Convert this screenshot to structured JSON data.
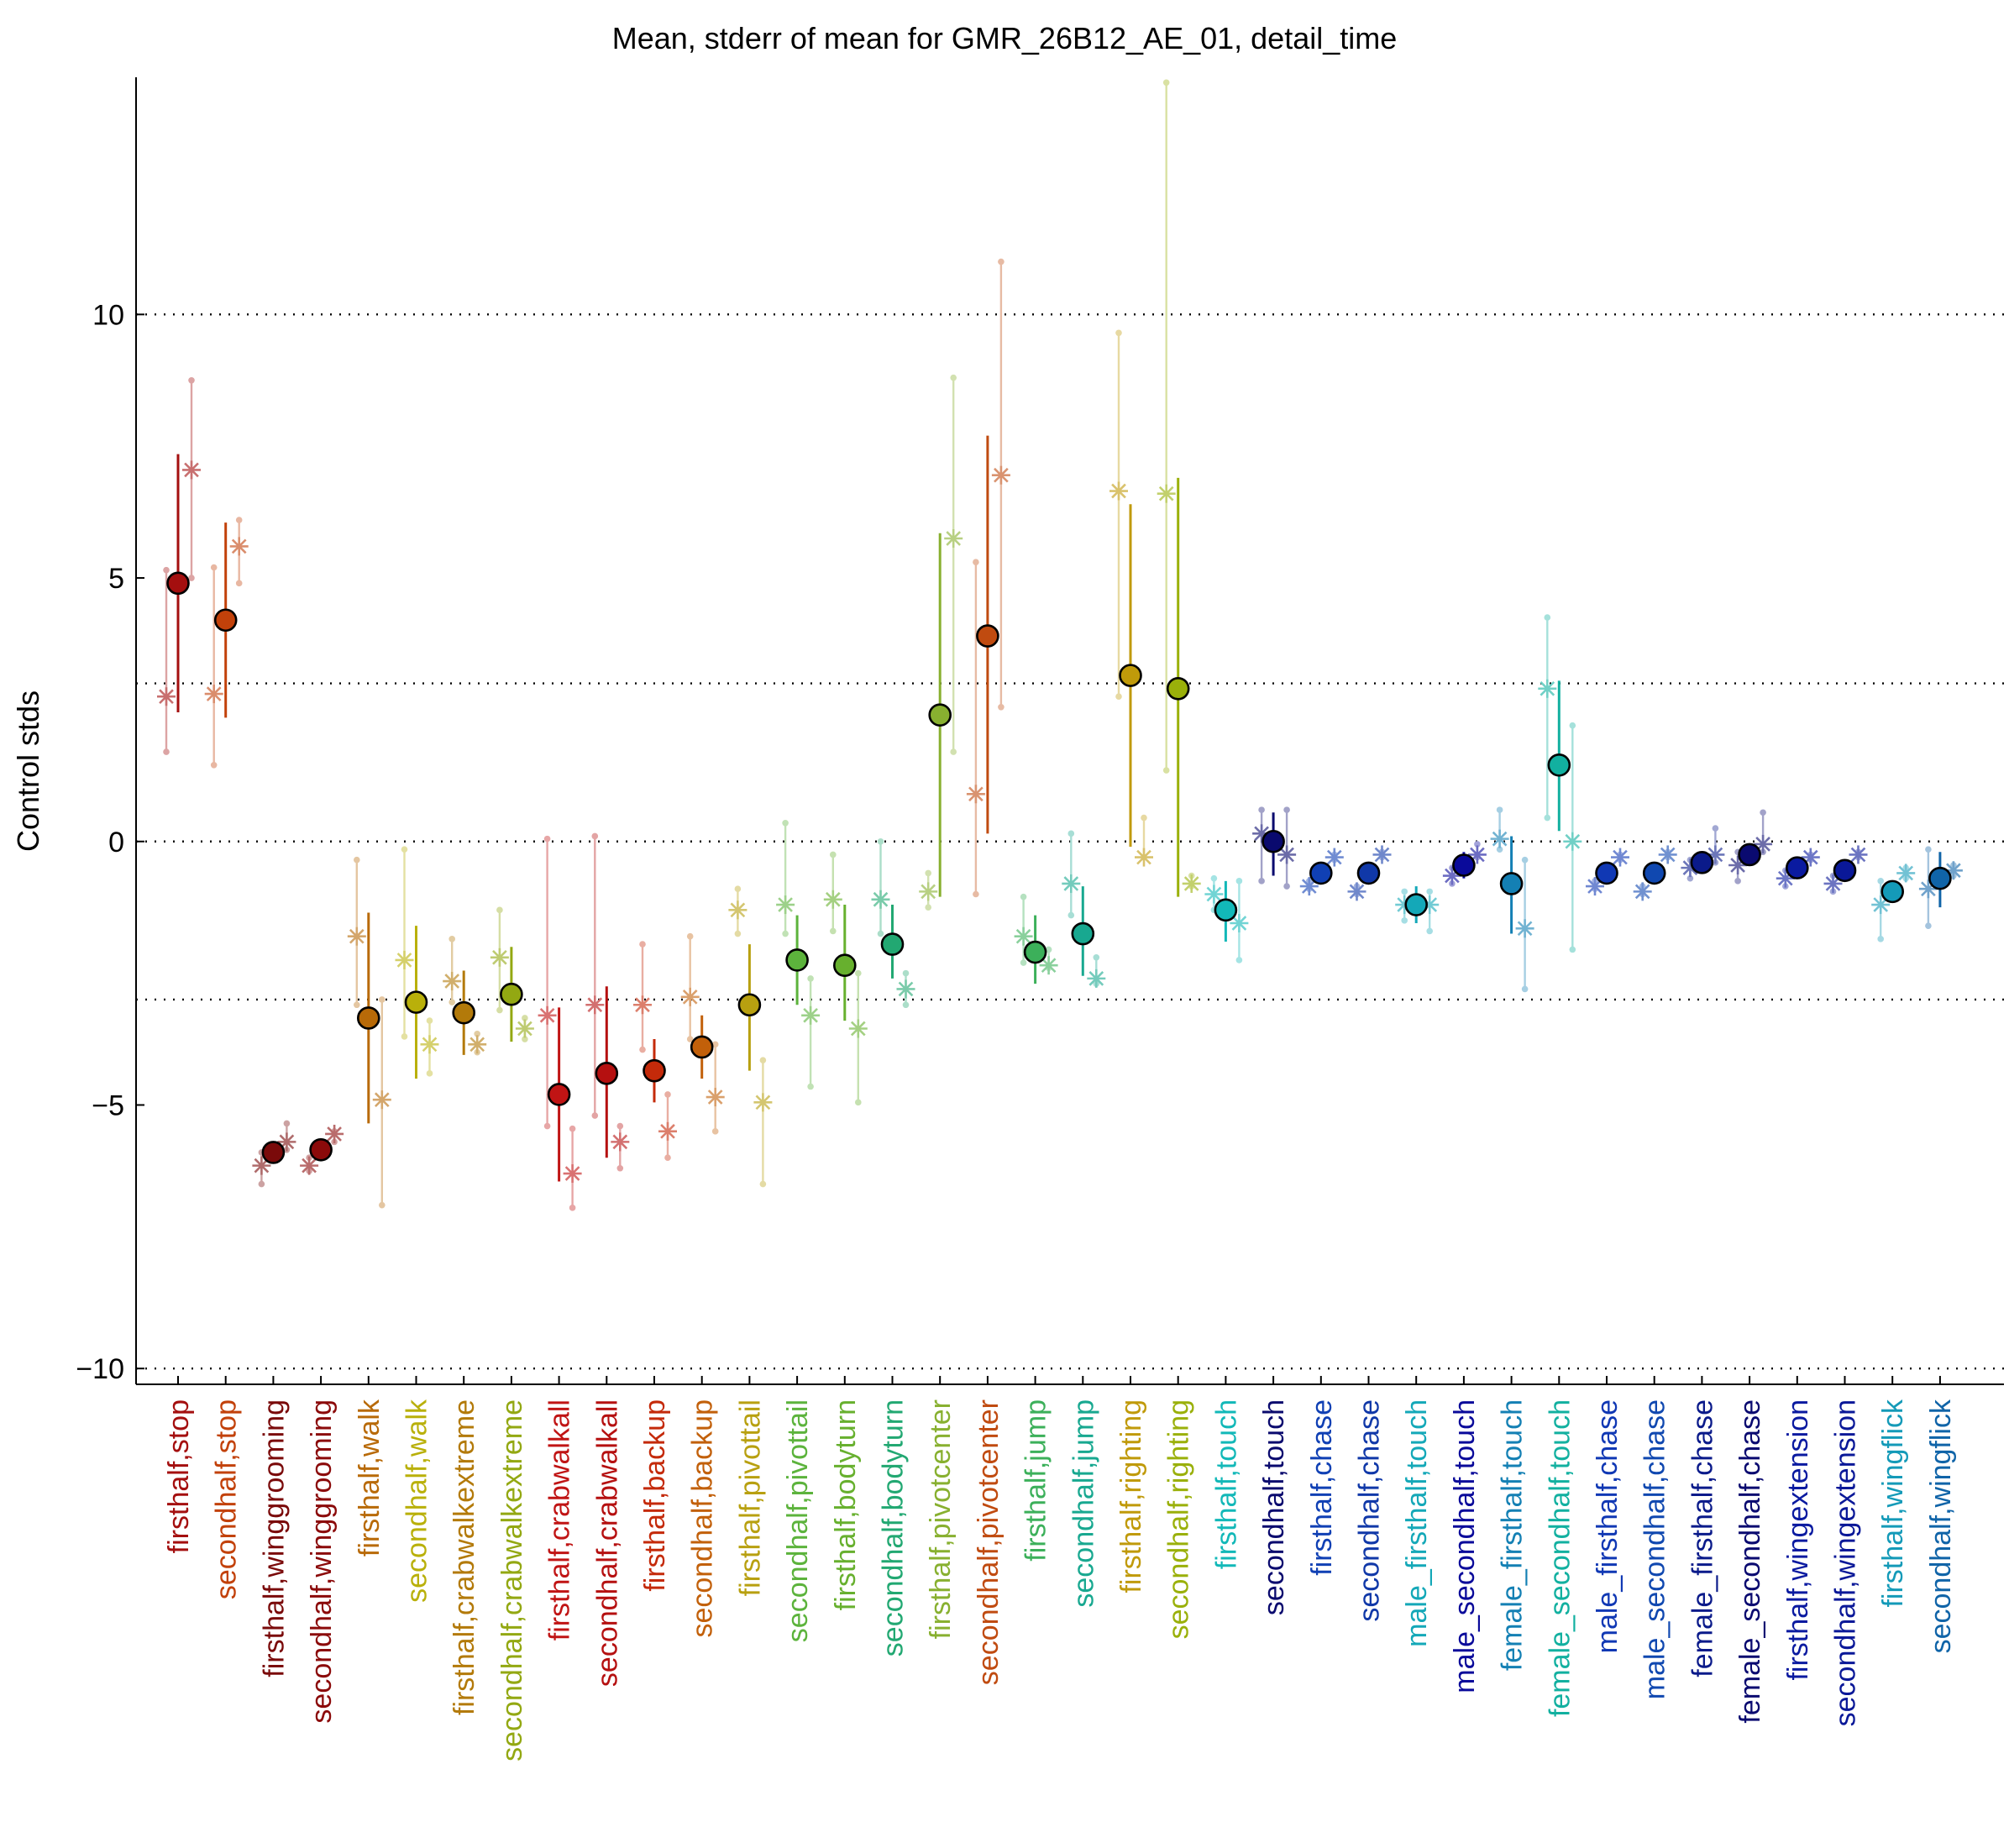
{
  "chart_data": {
    "type": "scatter",
    "title": "Mean, stderr of mean for GMR_26B12_AE_01, detail_time",
    "ylabel": "Control stds",
    "xlabel": "",
    "ylim": [
      -10.3,
      14.5
    ],
    "yticks": [
      10,
      5,
      0,
      -5,
      -10
    ],
    "ytick_labels": [
      "10",
      "5",
      "0",
      "−5",
      "−10"
    ],
    "gridlines_dotted": [
      10,
      3,
      0,
      -3,
      -10
    ],
    "grid": "dotted horizontal",
    "legend": "none",
    "categories": [
      "firsthalf,stop",
      "secondhalf,stop",
      "firsthalf,winggrooming",
      "secondhalf,winggrooming",
      "firsthalf,walk",
      "secondhalf,walk",
      "firsthalf,crabwalkextreme",
      "secondhalf,crabwalkextreme",
      "firsthalf,crabwalkall",
      "secondhalf,crabwalkall",
      "firsthalf,backup",
      "secondhalf,backup",
      "firsthalf,pivottail",
      "secondhalf,pivottail",
      "firsthalf,bodyturn",
      "secondhalf,bodyturn",
      "firsthalf,pivotcenter",
      "secondhalf,pivotcenter",
      "firsthalf,jump",
      "secondhalf,jump",
      "firsthalf,righting",
      "secondhalf,righting",
      "firsthalf,touch",
      "secondhalf,touch",
      "firsthalf,chase",
      "secondhalf,chase",
      "male_firsthalf,touch",
      "male_secondhalf,touch",
      "female_firsthalf,touch",
      "female_secondhalf,touch",
      "male_firsthalf,chase",
      "male_secondhalf,chase",
      "female_firsthalf,chase",
      "female_secondhalf,chase",
      "firsthalf,wingextension",
      "secondhalf,wingextension",
      "firsthalf,wingflick",
      "secondhalf,wingflick"
    ],
    "colors": [
      "#a40f0f",
      "#c2410a",
      "#7a0a0a",
      "#8b0a0a",
      "#b86a08",
      "#b9b00a",
      "#b37a0a",
      "#93a812",
      "#c01414",
      "#b51010",
      "#c42a0a",
      "#c2600a",
      "#b8a010",
      "#5cb33c",
      "#67b02e",
      "#22a872",
      "#88b030",
      "#c04b10",
      "#3cb05a",
      "#18a890",
      "#c09a0a",
      "#9ab00a",
      "#12b8b8",
      "#0a0a6e",
      "#1040b4",
      "#1038a8",
      "#14a8b8",
      "#0a0a9a",
      "#1480b4",
      "#12b0a0",
      "#1038b4",
      "#1048b0",
      "#0a1a8a",
      "#0a0a70",
      "#0a1aa0",
      "#0a1898",
      "#149ab8",
      "#1064a8"
    ],
    "series": [
      {
        "marker": "filled circle with stderr bar",
        "values": [
          4.9,
          4.2,
          -5.9,
          -5.85,
          -3.35,
          -3.05,
          -3.25,
          -2.9,
          -4.8,
          -4.4,
          -4.35,
          -3.9,
          -3.1,
          -2.25,
          -2.35,
          -1.95,
          2.4,
          3.9,
          -2.1,
          -1.75,
          3.15,
          2.9,
          -1.3,
          0.0,
          -0.6,
          -0.6,
          -1.2,
          -0.45,
          -0.8,
          1.45,
          -0.6,
          -0.6,
          -0.4,
          -0.25,
          -0.5,
          -0.55,
          -0.95,
          -0.7
        ],
        "err_low": [
          2.45,
          2.35,
          -5.95,
          -5.9,
          -5.35,
          -4.5,
          -4.05,
          -3.8,
          -6.45,
          -6.0,
          -4.95,
          -4.5,
          -4.35,
          -3.1,
          -3.4,
          -2.6,
          -1.05,
          0.15,
          -2.7,
          -2.55,
          -0.1,
          -1.05,
          -1.9,
          -0.65,
          -0.75,
          -0.75,
          -1.55,
          -0.7,
          -1.75,
          0.2,
          -0.75,
          -0.75,
          -0.5,
          -0.4,
          -0.6,
          -0.7,
          -1.1,
          -1.25
        ],
        "err_high": [
          7.35,
          6.05,
          -5.85,
          -5.8,
          -1.35,
          -1.6,
          -2.45,
          -2.0,
          -3.15,
          -2.75,
          -3.75,
          -3.3,
          -1.95,
          -1.4,
          -1.2,
          -1.2,
          5.85,
          7.7,
          -1.4,
          -0.85,
          6.4,
          6.9,
          -0.75,
          0.55,
          -0.4,
          -0.45,
          -0.85,
          -0.2,
          0.1,
          3.05,
          -0.45,
          -0.45,
          -0.3,
          -0.05,
          -0.35,
          -0.4,
          -0.75,
          -0.2
        ]
      },
      {
        "marker": "asterisk left",
        "values": [
          2.75,
          2.8,
          -6.15,
          -6.15,
          -1.8,
          -2.25,
          -2.65,
          -2.2,
          -3.3,
          -3.1,
          -3.1,
          -2.95,
          -1.3,
          -1.2,
          -1.1,
          -1.1,
          -0.95,
          0.9,
          -1.8,
          -0.8,
          6.65,
          6.6,
          -1.0,
          0.15,
          -0.85,
          -0.95,
          -1.2,
          -0.65,
          0.05,
          2.9,
          -0.85,
          -0.95,
          -0.5,
          -0.45,
          -0.7,
          -0.8,
          -1.2,
          -0.9
        ],
        "err_low": [
          1.7,
          1.45,
          -6.5,
          -6.25,
          -3.1,
          -3.7,
          -3.05,
          -3.2,
          -5.4,
          -5.2,
          -3.95,
          -3.75,
          -1.75,
          -1.75,
          -1.7,
          -1.75,
          -1.25,
          -1.0,
          -2.3,
          -1.4,
          2.75,
          1.35,
          -1.3,
          -0.75,
          -0.9,
          -1.0,
          -1.5,
          -0.8,
          -0.15,
          0.45,
          -0.9,
          -1.0,
          -0.7,
          -0.75,
          -0.85,
          -0.95,
          -1.85,
          -1.6
        ],
        "err_high": [
          5.15,
          5.2,
          -5.9,
          -6.0,
          -0.35,
          -0.15,
          -1.85,
          -1.3,
          0.05,
          0.1,
          -1.95,
          -1.8,
          -0.9,
          0.35,
          -0.25,
          0.0,
          -0.6,
          5.3,
          -1.05,
          0.15,
          9.65,
          14.4,
          -0.7,
          0.6,
          -0.75,
          -0.85,
          -0.95,
          -0.5,
          0.6,
          4.25,
          -0.75,
          -0.85,
          -0.35,
          -0.2,
          -0.55,
          -0.65,
          -0.75,
          -0.15
        ]
      },
      {
        "marker": "asterisk right",
        "values": [
          7.05,
          5.6,
          -5.7,
          -5.55,
          -4.9,
          -3.85,
          -3.85,
          -3.55,
          -6.3,
          -5.7,
          -5.5,
          -4.85,
          -4.95,
          -3.3,
          -3.55,
          -2.8,
          5.75,
          6.95,
          -2.35,
          -2.6,
          -0.3,
          -0.8,
          -1.55,
          -0.25,
          -0.3,
          -0.25,
          -1.2,
          -0.25,
          -1.65,
          0.0,
          -0.3,
          -0.25,
          -0.25,
          -0.05,
          -0.3,
          -0.25,
          -0.6,
          -0.55
        ],
        "err_low": [
          5.0,
          4.9,
          -5.85,
          -5.7,
          -6.9,
          -4.4,
          -4.0,
          -3.75,
          -6.95,
          -6.2,
          -6.0,
          -5.5,
          -6.5,
          -4.65,
          -4.95,
          -3.1,
          1.7,
          2.55,
          -2.4,
          -2.7,
          -0.3,
          -0.85,
          -2.25,
          -0.85,
          -0.35,
          -0.3,
          -1.7,
          -0.3,
          -2.8,
          -2.05,
          -0.35,
          -0.3,
          -0.4,
          -0.2,
          -0.35,
          -0.3,
          -0.7,
          -0.65
        ],
        "err_high": [
          8.75,
          6.1,
          -5.35,
          -5.5,
          -3.0,
          -3.4,
          -3.65,
          -3.35,
          -5.45,
          -5.4,
          -4.8,
          -3.85,
          -4.15,
          -2.6,
          -2.5,
          -2.5,
          8.8,
          11.0,
          -2.05,
          -2.2,
          0.45,
          -0.65,
          -0.75,
          0.6,
          -0.25,
          -0.2,
          -0.95,
          -0.05,
          -0.35,
          2.2,
          -0.25,
          -0.2,
          0.25,
          0.55,
          -0.25,
          -0.2,
          -0.5,
          -0.45
        ]
      }
    ]
  }
}
